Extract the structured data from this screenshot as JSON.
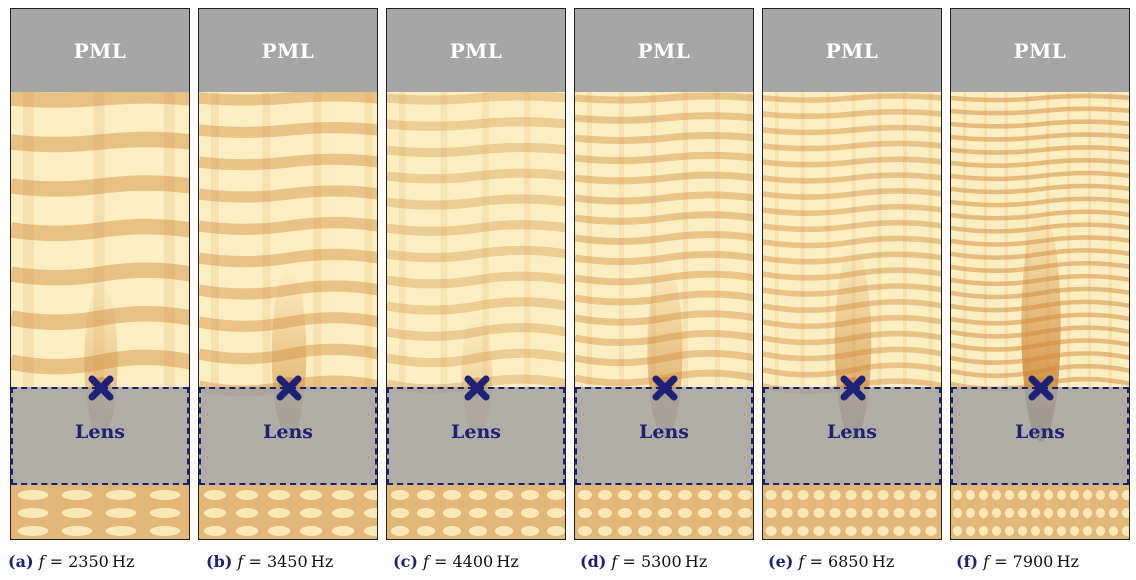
{
  "pml_label": "PML",
  "lens_label": "Lens",
  "colors": {
    "pml": "#a6a6a6",
    "field_low": "#fbeec0",
    "field_high": "#d08a3a",
    "field_peak": "#3a1a0a",
    "lens_overlay": "#a0a0a0",
    "accent": "#1d2277"
  },
  "panels": [
    {
      "tag": "(a)",
      "f_symbol": "f",
      "eq": "=",
      "value": "2350",
      "unit": "Hz",
      "intensity": 0.55,
      "period": 44,
      "focus": 0.45
    },
    {
      "tag": "(b)",
      "f_symbol": "f",
      "eq": "=",
      "value": "3450",
      "unit": "Hz",
      "intensity": 0.5,
      "period": 32,
      "focus": 0.55
    },
    {
      "tag": "(c)",
      "f_symbol": "f",
      "eq": "=",
      "value": "4400",
      "unit": "Hz",
      "intensity": 0.25,
      "period": 26,
      "focus": 0.25
    },
    {
      "tag": "(d)",
      "f_symbol": "f",
      "eq": "=",
      "value": "5300",
      "unit": "Hz",
      "intensity": 0.45,
      "period": 20,
      "focus": 0.6
    },
    {
      "tag": "(e)",
      "f_symbol": "f",
      "eq": "=",
      "value": "6850",
      "unit": "Hz",
      "intensity": 0.5,
      "period": 16,
      "focus": 0.7
    },
    {
      "tag": "(f)",
      "f_symbol": "f",
      "eq": "=",
      "value": "7900",
      "unit": "Hz",
      "intensity": 0.7,
      "period": 13,
      "focus": 0.95
    }
  ]
}
